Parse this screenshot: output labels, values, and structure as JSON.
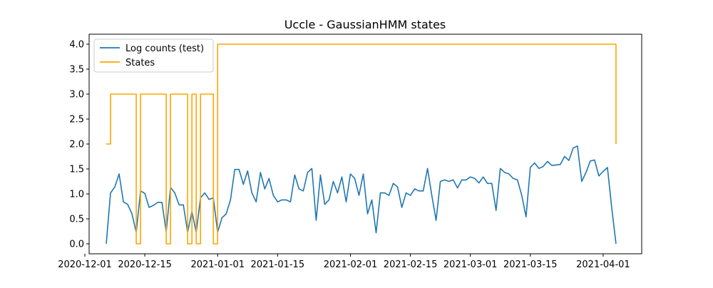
{
  "chart_data": {
    "type": "line",
    "title": "Uccle - GaussianHMM states",
    "xlabel": "",
    "ylabel": "",
    "x_axis_type": "date",
    "xlim": [
      "2020-12-02",
      "2021-04-10"
    ],
    "ylim": [
      -0.2,
      4.2
    ],
    "xticks": [
      "2020-12-01",
      "2020-12-15",
      "2021-01-01",
      "2021-01-15",
      "2021-02-01",
      "2021-02-15",
      "2021-03-01",
      "2021-03-15",
      "2021-04-01"
    ],
    "yticks": [
      0.0,
      0.5,
      1.0,
      1.5,
      2.0,
      2.5,
      3.0,
      3.5,
      4.0
    ],
    "ytick_labels": [
      "0.0",
      "0.5",
      "1.0",
      "1.5",
      "2.0",
      "2.5",
      "3.0",
      "3.5",
      "4.0"
    ],
    "grid": false,
    "legend_position": "top-left",
    "series": [
      {
        "name": "Log counts (test)",
        "color": "#1f77b4",
        "x": [
          "2020-12-06",
          "2020-12-07",
          "2020-12-08",
          "2020-12-09",
          "2020-12-10",
          "2020-12-11",
          "2020-12-12",
          "2020-12-13",
          "2020-12-14",
          "2020-12-15",
          "2020-12-16",
          "2020-12-17",
          "2020-12-18",
          "2020-12-19",
          "2020-12-20",
          "2020-12-21",
          "2020-12-22",
          "2020-12-23",
          "2020-12-24",
          "2020-12-25",
          "2020-12-26",
          "2020-12-27",
          "2020-12-28",
          "2020-12-29",
          "2020-12-30",
          "2020-12-31",
          "2021-01-01",
          "2021-01-02",
          "2021-01-03",
          "2021-01-04",
          "2021-01-05",
          "2021-01-06",
          "2021-01-07",
          "2021-01-08",
          "2021-01-09",
          "2021-01-10",
          "2021-01-11",
          "2021-01-12",
          "2021-01-13",
          "2021-01-14",
          "2021-01-15",
          "2021-01-16",
          "2021-01-17",
          "2021-01-18",
          "2021-01-19",
          "2021-01-20",
          "2021-01-21",
          "2021-01-22",
          "2021-01-23",
          "2021-01-24",
          "2021-01-25",
          "2021-01-26",
          "2021-01-27",
          "2021-01-28",
          "2021-01-29",
          "2021-01-30",
          "2021-01-31",
          "2021-02-01",
          "2021-02-02",
          "2021-02-03",
          "2021-02-04",
          "2021-02-05",
          "2021-02-06",
          "2021-02-07",
          "2021-02-08",
          "2021-02-09",
          "2021-02-10",
          "2021-02-11",
          "2021-02-12",
          "2021-02-13",
          "2021-02-14",
          "2021-02-15",
          "2021-02-16",
          "2021-02-17",
          "2021-02-18",
          "2021-02-19",
          "2021-02-20",
          "2021-02-21",
          "2021-02-22",
          "2021-02-23",
          "2021-02-24",
          "2021-02-25",
          "2021-02-26",
          "2021-02-27",
          "2021-02-28",
          "2021-03-01",
          "2021-03-02",
          "2021-03-03",
          "2021-03-04",
          "2021-03-05",
          "2021-03-06",
          "2021-03-07",
          "2021-03-08",
          "2021-03-09",
          "2021-03-10",
          "2021-03-11",
          "2021-03-12",
          "2021-03-13",
          "2021-03-14",
          "2021-03-15",
          "2021-03-16",
          "2021-03-17",
          "2021-03-18",
          "2021-03-19",
          "2021-03-20",
          "2021-03-21",
          "2021-03-22",
          "2021-03-23",
          "2021-03-24",
          "2021-03-25",
          "2021-03-26",
          "2021-03-27",
          "2021-03-28",
          "2021-03-29",
          "2021-03-30",
          "2021-03-31",
          "2021-04-01",
          "2021-04-02",
          "2021-04-03",
          "2021-04-04"
        ],
        "y": [
          0.0,
          1.02,
          1.14,
          1.4,
          0.84,
          0.79,
          0.6,
          0.23,
          1.06,
          1.01,
          0.73,
          0.77,
          0.83,
          0.83,
          0.24,
          1.13,
          1.02,
          0.78,
          0.78,
          0.23,
          0.65,
          0.23,
          0.92,
          1.02,
          0.89,
          0.92,
          0.23,
          0.52,
          0.6,
          0.88,
          1.49,
          1.49,
          1.19,
          1.46,
          1.02,
          0.84,
          1.43,
          1.1,
          1.31,
          0.97,
          0.84,
          0.88,
          0.88,
          0.84,
          1.38,
          1.1,
          1.06,
          1.43,
          1.51,
          0.47,
          1.38,
          0.79,
          0.88,
          1.25,
          1.02,
          1.34,
          0.84,
          1.4,
          1.31,
          0.97,
          1.4,
          0.6,
          0.88,
          0.22,
          1.02,
          1.02,
          0.97,
          1.21,
          1.14,
          0.73,
          1.02,
          0.97,
          1.1,
          1.06,
          1.06,
          1.51,
          0.97,
          0.47,
          1.25,
          1.28,
          1.25,
          1.28,
          1.12,
          1.28,
          1.28,
          1.34,
          1.31,
          1.22,
          1.34,
          1.21,
          1.21,
          0.67,
          1.51,
          1.43,
          1.4,
          1.31,
          1.28,
          0.97,
          0.54,
          1.53,
          1.62,
          1.51,
          1.55,
          1.65,
          1.57,
          1.58,
          1.59,
          1.75,
          1.67,
          1.92,
          1.96,
          1.25,
          1.43,
          1.66,
          1.68,
          1.36,
          1.45,
          1.53,
          0.72,
          0.0
        ]
      },
      {
        "name": "States",
        "color": "#ffa500",
        "drawstyle": "steps-post",
        "x": [
          "2020-12-06",
          "2020-12-07",
          "2020-12-13",
          "2020-12-14",
          "2020-12-20",
          "2020-12-21",
          "2020-12-25",
          "2020-12-26",
          "2020-12-27",
          "2020-12-28",
          "2020-12-31",
          "2021-01-01",
          "2021-04-04"
        ],
        "y": [
          2,
          3,
          0,
          3,
          0,
          3,
          0,
          3,
          0,
          3,
          0,
          4,
          2
        ]
      }
    ]
  }
}
